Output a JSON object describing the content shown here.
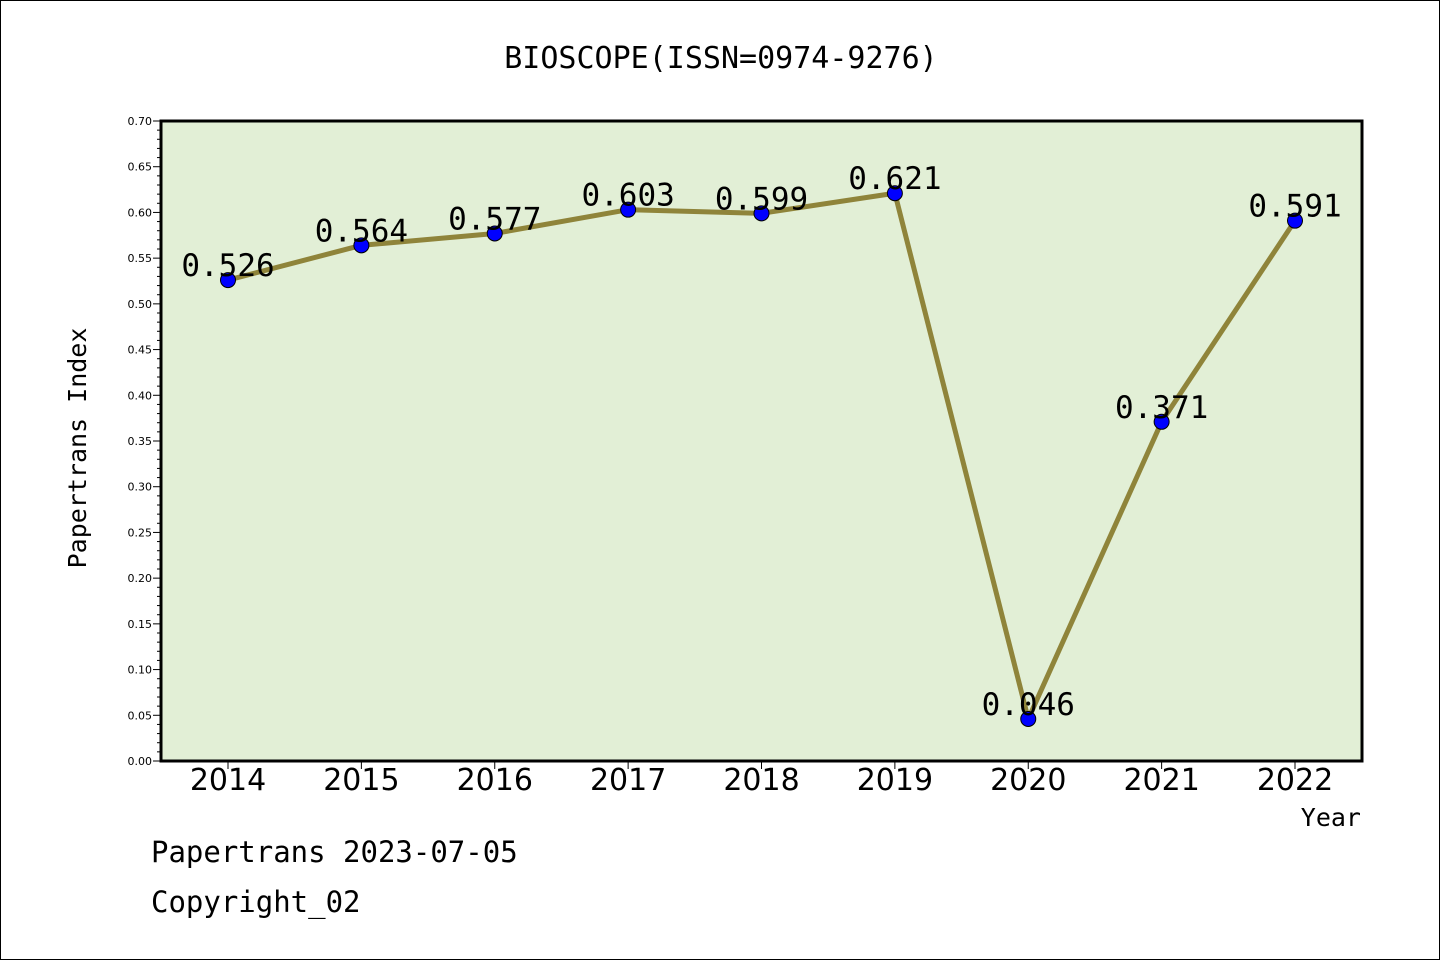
{
  "chart_data": {
    "type": "line",
    "title": "BIOSCOPE(ISSN=0974-9276)",
    "xlabel": "Year",
    "ylabel": "Papertrans Index",
    "categories": [
      "2014",
      "2015",
      "2016",
      "2017",
      "2018",
      "2019",
      "2020",
      "2021",
      "2022"
    ],
    "series": [
      {
        "values": [
          0.526,
          0.564,
          0.577,
          0.603,
          0.599,
          0.621,
          0.046,
          0.371,
          0.591
        ]
      }
    ],
    "data_labels": [
      "0.526",
      "0.564",
      "0.577",
      "0.603",
      "0.599",
      "0.621",
      "0.046",
      "0.371",
      "0.591"
    ],
    "ylim": [
      0,
      0.7
    ],
    "yticks": [
      "0.00",
      "0.05",
      "0.10",
      "0.15",
      "0.20",
      "0.25",
      "0.30",
      "0.35",
      "0.40",
      "0.45",
      "0.50",
      "0.55",
      "0.60",
      "0.65",
      "0.70"
    ],
    "grid": false,
    "colors": {
      "plot_background": "#e2efd6",
      "line": "#8f843a",
      "marker": "#0000ff"
    }
  },
  "footer": {
    "line1": "Papertrans 2023-07-05",
    "line2": "Copyright_02"
  }
}
